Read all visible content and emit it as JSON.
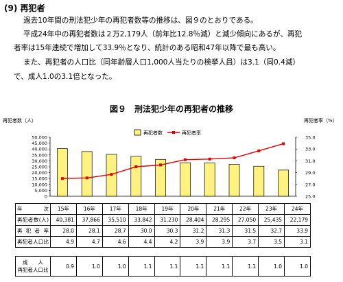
{
  "section": {
    "number": "(9)",
    "title": "再犯者"
  },
  "paragraphs": [
    "過去10年間の刑法犯少年の再犯者数等の推移は、図９のとおりである。",
    "平成24年中の再犯者数は２万2,179人（前年比12.8％減）と減少傾向にあるが、再犯",
    "者率は15年連続で増加して33.9％となり、統計のある昭和47年以降で最も高い。",
    "また、再犯者の人口比（同年齢層人口1,000人当たりの検挙人員）は3.1（同0.4減）",
    "で、成人1.0の3.1倍となった。"
  ],
  "figure": {
    "title": "図９　刑法犯少年の再犯者の推移"
  },
  "chart_data": {
    "type": "bar",
    "categories": [
      "15年",
      "16年",
      "17年",
      "18年",
      "19年",
      "20年",
      "21年",
      "22年",
      "23年",
      "24年"
    ],
    "series": [
      {
        "name": "再犯者数",
        "type": "bar",
        "axis": "left",
        "color": "#FFF280",
        "values": [
          40381,
          37866,
          35510,
          33842,
          31230,
          28404,
          28295,
          27050,
          25435,
          22179
        ]
      },
      {
        "name": "再犯者率",
        "type": "line",
        "axis": "right",
        "color": "#E00000",
        "values": [
          28.0,
          28.1,
          28.7,
          30.0,
          30.3,
          31.2,
          31.3,
          31.5,
          32.7,
          33.9
        ]
      }
    ],
    "ylabel_left": "再犯者数（人）",
    "ylabel_right": "再犯者率（%）",
    "yticks_left": [
      "50,000",
      "45,000",
      "40,000",
      "35,000",
      "30,000",
      "25,000",
      "20,000",
      "15,000",
      "10,000",
      "5,000",
      "0"
    ],
    "yticks_right": [
      "35.0",
      "33.0",
      "31.0",
      "29.0",
      "27.0",
      "25.0"
    ],
    "ylim_left": [
      0,
      50000
    ],
    "ylim_right": [
      25.0,
      35.0
    ],
    "legend_position": "top"
  },
  "table": {
    "header_label": "年　次",
    "years": [
      "15年",
      "16年",
      "17年",
      "18年",
      "19年",
      "20年",
      "21年",
      "22年",
      "23年",
      "24年"
    ],
    "rows": [
      {
        "label": "再犯者数(人)",
        "values": [
          "40,381",
          "37,866",
          "35,510",
          "33,842",
          "31,230",
          "28,404",
          "28,295",
          "27,050",
          "25,435",
          "22,179"
        ]
      },
      {
        "label": "再犯者率",
        "values": [
          "28.0",
          "28.1",
          "28.7",
          "30.0",
          "30.3",
          "31.2",
          "31.3",
          "31.5",
          "32.7",
          "33.9"
        ]
      },
      {
        "label": "再犯者人口比",
        "values": [
          "4.9",
          "4.7",
          "4.6",
          "4.4",
          "4.2",
          "3.9",
          "3.9",
          "3.7",
          "3.5",
          "3.1"
        ]
      }
    ],
    "adult_label_1": "成　　人",
    "adult_label_2": "再犯者人口比",
    "adult_values": [
      "0.9",
      "1.0",
      "1.0",
      "1.1",
      "1.1",
      "1.1",
      "1.1",
      "1.1",
      "1.0",
      "1.0"
    ]
  }
}
